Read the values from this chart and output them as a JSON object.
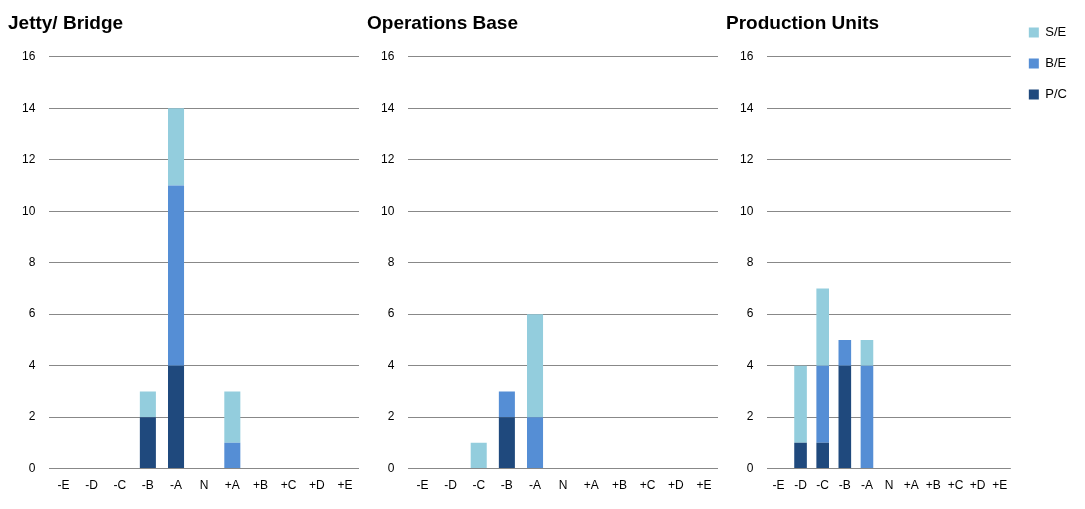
{
  "chart_data": [
    {
      "type": "bar",
      "title": "Jetty/ Bridge",
      "stacked": true,
      "categories": [
        "-E",
        "-D",
        "-C",
        "-B",
        "-A",
        "N",
        "+A",
        "+B",
        "+C",
        "+D",
        "+E"
      ],
      "ylim": [
        0,
        16
      ],
      "yticks": [
        0,
        2,
        4,
        6,
        8,
        10,
        12,
        14,
        16
      ],
      "grid": "y",
      "legend": false,
      "series": [
        {
          "color": "#1f497d",
          "values": [
            0,
            0,
            0,
            2,
            4,
            0,
            0,
            0,
            0,
            0,
            0
          ]
        },
        {
          "color": "#558ed5",
          "values": [
            0,
            0,
            0,
            0,
            7,
            0,
            1,
            0,
            0,
            0,
            0
          ]
        },
        {
          "color": "#93cddd",
          "values": [
            0,
            0,
            0,
            1,
            3,
            0,
            2,
            0,
            0,
            0,
            0
          ]
        }
      ]
    },
    {
      "type": "bar",
      "title": "Operations Base",
      "stacked": true,
      "categories": [
        "-E",
        "-D",
        "-C",
        "-B",
        "-A",
        "N",
        "+A",
        "+B",
        "+C",
        "+D",
        "+E"
      ],
      "ylim": [
        0,
        16
      ],
      "yticks": [
        0,
        2,
        4,
        6,
        8,
        10,
        12,
        14,
        16
      ],
      "grid": "y",
      "legend": false,
      "series": [
        {
          "color": "#1f497d",
          "values": [
            0,
            0,
            0,
            2,
            0,
            0,
            0,
            0,
            0,
            0,
            0
          ]
        },
        {
          "color": "#558ed5",
          "values": [
            0,
            0,
            0,
            1,
            2,
            0,
            0,
            0,
            0,
            0,
            0
          ]
        },
        {
          "color": "#93cddd",
          "values": [
            0,
            0,
            1,
            0,
            4,
            0,
            0,
            0,
            0,
            0,
            0
          ]
        }
      ]
    },
    {
      "type": "bar",
      "title": "Production Units",
      "stacked": true,
      "categories": [
        "-E",
        "-D",
        "-C",
        "-B",
        "-A",
        "N",
        "+A",
        "+B",
        "+C",
        "+D",
        "+E"
      ],
      "ylim": [
        0,
        16
      ],
      "yticks": [
        0,
        2,
        4,
        6,
        8,
        10,
        12,
        14,
        16
      ],
      "grid": "y",
      "legend": "top right",
      "series": [
        {
          "name": "P/C",
          "color": "#1f497d",
          "values": [
            0,
            1,
            1,
            4,
            0,
            0,
            0,
            0,
            0,
            0,
            0
          ]
        },
        {
          "name": "B/E",
          "color": "#558ed5",
          "values": [
            0,
            0,
            3,
            1,
            4,
            0,
            0,
            0,
            0,
            0,
            0
          ]
        },
        {
          "name": "S/E",
          "color": "#93cddd",
          "values": [
            0,
            3,
            3,
            0,
            1,
            0,
            0,
            0,
            0,
            0,
            0
          ]
        }
      ]
    }
  ]
}
